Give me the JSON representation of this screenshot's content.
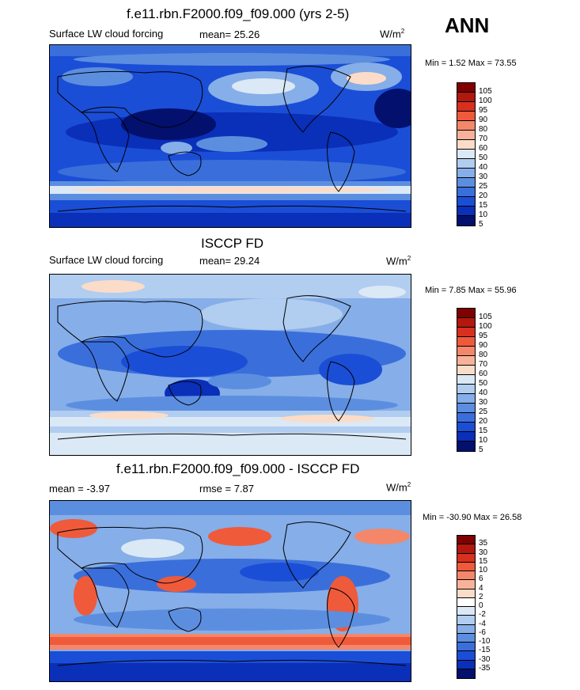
{
  "season": "ANN",
  "panels": [
    {
      "title": "f.e11.rbn.F2000.f09_f09.000 (yrs 2-5)",
      "left_label": "Surface LW cloud forcing",
      "mean_label": "mean=  25.26",
      "units_base": "W/m",
      "units_exp": "2",
      "min_max": "Min =   1.52 Max =  73.55",
      "colorbar": [
        "105",
        "100",
        "95",
        "90",
        "80",
        "70",
        "60",
        "50",
        "40",
        "30",
        "25",
        "20",
        "15",
        "10",
        "5"
      ],
      "colors": [
        "#7f0000",
        "#b2180d",
        "#d7301f",
        "#ef5a3b",
        "#f4876a",
        "#f7b299",
        "#fbdcc8",
        "#dbe8f6",
        "#b1cdf0",
        "#86aee8",
        "#5c8ee0",
        "#3a6fdb",
        "#1b4ed6",
        "#0a2fb8",
        "#03106e"
      ]
    },
    {
      "title": "ISCCP FD",
      "left_label": "Surface LW cloud forcing",
      "mean_label": "mean=  29.24",
      "units_base": "W/m",
      "units_exp": "2",
      "min_max": "Min =   7.85 Max =  55.96",
      "colorbar": [
        "105",
        "100",
        "95",
        "90",
        "80",
        "70",
        "60",
        "50",
        "40",
        "30",
        "25",
        "20",
        "15",
        "10",
        "5"
      ],
      "colors": [
        "#7f0000",
        "#b2180d",
        "#d7301f",
        "#ef5a3b",
        "#f4876a",
        "#f7b299",
        "#fbdcc8",
        "#dbe8f6",
        "#b1cdf0",
        "#86aee8",
        "#5c8ee0",
        "#3a6fdb",
        "#1b4ed6",
        "#0a2fb8",
        "#03106e"
      ]
    },
    {
      "title": "f.e11.rbn.F2000.f09_f09.000 - ISCCP FD",
      "left_label": "mean =  -3.97",
      "mean_label": "rmse =   7.87",
      "units_base": "W/m",
      "units_exp": "2",
      "min_max": "Min = -30.90 Max =  26.58",
      "colorbar": [
        "35",
        "30",
        "15",
        "10",
        "6",
        "4",
        "2",
        "0",
        "-2",
        "-4",
        "-6",
        "-10",
        "-15",
        "-30",
        "-35"
      ],
      "colors": [
        "#7f0000",
        "#b2180d",
        "#d7301f",
        "#ef5a3b",
        "#f4876a",
        "#f7b299",
        "#fbdcc8",
        "#ffffff",
        "#dbe8f6",
        "#b1cdf0",
        "#86aee8",
        "#5c8ee0",
        "#3a6fdb",
        "#1b4ed6",
        "#0a2fb8",
        "#03106e"
      ]
    }
  ]
}
